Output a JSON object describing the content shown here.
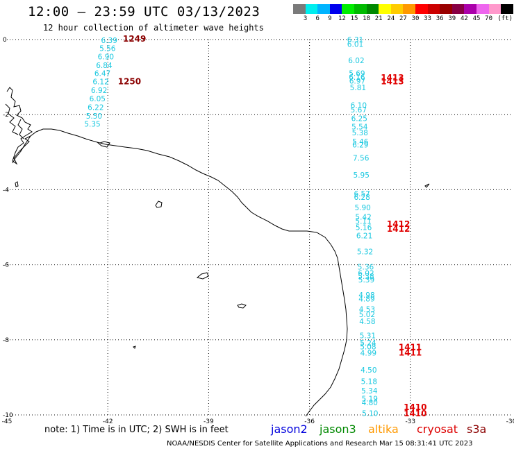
{
  "header": {
    "title": "12:00 – 23:59 UTC 03/13/2023",
    "subtitle": "12 hour collection of altimeter wave heights"
  },
  "color_scale": {
    "colors": [
      "#7a7a7a",
      "#00eeee",
      "#00b4ff",
      "#0000ee",
      "#00ee00",
      "#00bb00",
      "#008800",
      "#ffff00",
      "#ffcc00",
      "#ff9900",
      "#ff0000",
      "#cc0000",
      "#990000",
      "#880044",
      "#aa00aa",
      "#ee66ee",
      "#ff99cc",
      "#000000"
    ],
    "ticks": [
      "3",
      "6",
      "9",
      "12",
      "15",
      "18",
      "21",
      "24",
      "27",
      "30",
      "33",
      "36",
      "39",
      "42",
      "45",
      "70",
      "(ft)"
    ]
  },
  "axes": {
    "y_ticks": [
      "0",
      "-2",
      "-4",
      "-6",
      "-8",
      "-10"
    ],
    "x_ticks": [
      "-45",
      "-42",
      "-39",
      "-36",
      "-33",
      "-30"
    ],
    "lon_range": [
      -45,
      -30
    ],
    "lat_range": [
      -10,
      0
    ]
  },
  "observations": [
    {
      "lon": -42.2,
      "lat": -0.02,
      "swh": "6.39"
    },
    {
      "lon": -42.25,
      "lat": -0.23,
      "swh": "5.56"
    },
    {
      "lon": -42.3,
      "lat": -0.45,
      "swh": "6.90"
    },
    {
      "lon": -42.35,
      "lat": -0.68,
      "swh": "6.84"
    },
    {
      "lon": -42.4,
      "lat": -0.9,
      "swh": "6.47"
    },
    {
      "lon": -42.45,
      "lat": -1.12,
      "swh": "6.12"
    },
    {
      "lon": -42.5,
      "lat": -1.35,
      "swh": "6.92"
    },
    {
      "lon": -42.55,
      "lat": -1.57,
      "swh": "6.05"
    },
    {
      "lon": -42.6,
      "lat": -1.8,
      "swh": "6.22"
    },
    {
      "lon": -42.65,
      "lat": -2.03,
      "swh": "5.50"
    },
    {
      "lon": -42.7,
      "lat": -2.25,
      "swh": "5.35"
    },
    {
      "lon": -34.88,
      "lat": 0.0,
      "swh": "6.31"
    },
    {
      "lon": -34.88,
      "lat": -0.12,
      "swh": "6.01"
    },
    {
      "lon": -34.85,
      "lat": -0.55,
      "swh": "6.02"
    },
    {
      "lon": -34.83,
      "lat": -0.9,
      "swh": "5.69"
    },
    {
      "lon": -34.83,
      "lat": -1.0,
      "swh": "6.16"
    },
    {
      "lon": -34.82,
      "lat": -1.1,
      "swh": "6.97"
    },
    {
      "lon": -34.8,
      "lat": -1.28,
      "swh": "5.81"
    },
    {
      "lon": -34.78,
      "lat": -1.75,
      "swh": "6.10"
    },
    {
      "lon": -34.78,
      "lat": -1.87,
      "swh": "5.67"
    },
    {
      "lon": -34.76,
      "lat": -2.1,
      "swh": "6.25"
    },
    {
      "lon": -34.75,
      "lat": -2.32,
      "swh": "5.54"
    },
    {
      "lon": -34.74,
      "lat": -2.48,
      "swh": "5.38"
    },
    {
      "lon": -34.73,
      "lat": -2.72,
      "swh": "5.46"
    },
    {
      "lon": -34.73,
      "lat": -2.8,
      "swh": "6.29"
    },
    {
      "lon": -34.71,
      "lat": -3.15,
      "swh": "7.56"
    },
    {
      "lon": -34.7,
      "lat": -3.6,
      "swh": "5.95"
    },
    {
      "lon": -34.68,
      "lat": -4.1,
      "swh": "6.57"
    },
    {
      "lon": -34.68,
      "lat": -4.2,
      "swh": "6.28"
    },
    {
      "lon": -34.66,
      "lat": -4.47,
      "swh": "5.90"
    },
    {
      "lon": -34.64,
      "lat": -4.72,
      "swh": "5.42"
    },
    {
      "lon": -34.64,
      "lat": -4.83,
      "swh": "5.11"
    },
    {
      "lon": -34.63,
      "lat": -5.0,
      "swh": "5.16"
    },
    {
      "lon": -34.61,
      "lat": -5.22,
      "swh": "6.21"
    },
    {
      "lon": -34.59,
      "lat": -5.65,
      "swh": "5.32"
    },
    {
      "lon": -34.57,
      "lat": -6.05,
      "swh": "5.36"
    },
    {
      "lon": -34.56,
      "lat": -6.22,
      "swh": "6.02"
    },
    {
      "lon": -34.56,
      "lat": -6.3,
      "swh": "5.38"
    },
    {
      "lon": -34.55,
      "lat": -6.4,
      "swh": "5.39"
    },
    {
      "lon": -34.54,
      "lat": -6.8,
      "swh": "4.98"
    },
    {
      "lon": -34.54,
      "lat": -6.9,
      "swh": "4.89"
    },
    {
      "lon": -34.53,
      "lat": -7.18,
      "swh": "4.53"
    },
    {
      "lon": -34.53,
      "lat": -7.32,
      "swh": "5.02"
    },
    {
      "lon": -34.52,
      "lat": -7.5,
      "swh": "4.58"
    },
    {
      "lon": -34.51,
      "lat": -7.88,
      "swh": "5.31"
    },
    {
      "lon": -34.5,
      "lat": -8.08,
      "swh": "5.24"
    },
    {
      "lon": -34.5,
      "lat": -8.18,
      "swh": "5.08"
    },
    {
      "lon": -34.49,
      "lat": -8.35,
      "swh": "4.99"
    },
    {
      "lon": -34.48,
      "lat": -8.8,
      "swh": "4.50"
    },
    {
      "lon": -34.47,
      "lat": -9.1,
      "swh": "5.18"
    },
    {
      "lon": -34.46,
      "lat": -9.35,
      "swh": "5.34"
    },
    {
      "lon": -34.45,
      "lat": -9.57,
      "swh": "5.19"
    },
    {
      "lon": -34.45,
      "lat": -9.67,
      "swh": "4.80"
    },
    {
      "lon": -34.44,
      "lat": -9.95,
      "swh": "5.10"
    }
  ],
  "time_labels": [
    {
      "lon": -41.55,
      "lat": 0.02,
      "text": "1249",
      "color": "#8b0000"
    },
    {
      "lon": -41.7,
      "lat": -1.12,
      "text": "1250",
      "color": "#8b0000"
    },
    {
      "lon": -33.88,
      "lat": -1.02,
      "text": "1413",
      "color": "#e00000"
    },
    {
      "lon": -33.88,
      "lat": -1.12,
      "text": "1413",
      "color": "#e00000"
    },
    {
      "lon": -33.7,
      "lat": -4.92,
      "text": "1412",
      "color": "#e00000"
    },
    {
      "lon": -33.7,
      "lat": -5.05,
      "text": "1412",
      "color": "#e00000"
    },
    {
      "lon": -33.35,
      "lat": -8.2,
      "text": "1411",
      "color": "#e00000"
    },
    {
      "lon": -33.35,
      "lat": -8.35,
      "text": "1411",
      "color": "#e00000"
    },
    {
      "lon": -33.2,
      "lat": -9.8,
      "text": "1410",
      "color": "#e00000"
    },
    {
      "lon": -33.2,
      "lat": -9.96,
      "text": "1410",
      "color": "#e00000"
    }
  ],
  "note": "note: 1) Time is in UTC; 2) SWH is in feet",
  "satellites": [
    {
      "name": "jason2",
      "color": "#0000dd"
    },
    {
      "name": "jason3",
      "color": "#008800"
    },
    {
      "name": "altika",
      "color": "#ff9900"
    },
    {
      "name": "cryosat",
      "color": "#dd0000"
    },
    {
      "name": "s3a",
      "color": "#8b0000"
    }
  ],
  "footer": "NOAA/NESDIS Center for Satellite Applications and Research   Mar 15 08:31:41 UTC 2023"
}
